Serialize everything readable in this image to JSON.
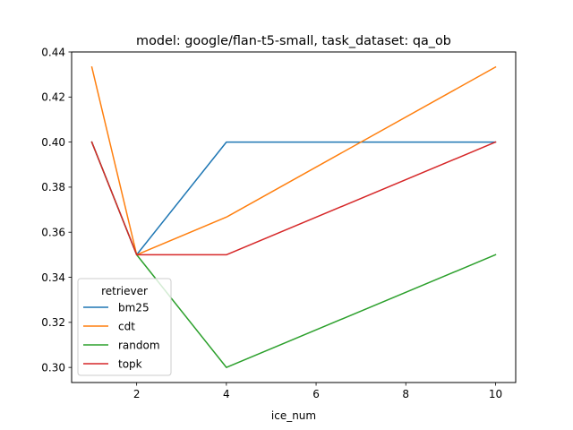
{
  "chart_data": {
    "type": "line",
    "title": "model: google/flan-t5-small, task_dataset: qa_ob",
    "xlabel": "ice_num",
    "ylabel": "",
    "x": [
      1,
      2,
      4,
      10
    ],
    "xlim": [
      0.55,
      10.45
    ],
    "ylim": [
      0.2933,
      0.44
    ],
    "xticks": [
      2,
      4,
      6,
      8,
      10
    ],
    "xtick_labels": [
      "2",
      "4",
      "6",
      "8",
      "10"
    ],
    "yticks": [
      0.3,
      0.32,
      0.34,
      0.36,
      0.38,
      0.4,
      0.42,
      0.44
    ],
    "ytick_labels": [
      "0.30",
      "0.32",
      "0.34",
      "0.36",
      "0.38",
      "0.40",
      "0.42",
      "0.44"
    ],
    "grid": false,
    "legend": {
      "title": "retriever",
      "placement": "lower-left"
    },
    "series": [
      {
        "name": "bm25",
        "color": "#1f77b4",
        "values": [
          0.4,
          0.35,
          0.4,
          0.4
        ]
      },
      {
        "name": "cdt",
        "color": "#ff7f0e",
        "values": [
          0.4333,
          0.35,
          0.3667,
          0.4333
        ]
      },
      {
        "name": "random",
        "color": "#2ca02c",
        "values": [
          0.4,
          0.35,
          0.3,
          0.35
        ]
      },
      {
        "name": "topk",
        "color": "#d62728",
        "values": [
          0.4,
          0.35,
          0.35,
          0.4
        ]
      }
    ]
  }
}
